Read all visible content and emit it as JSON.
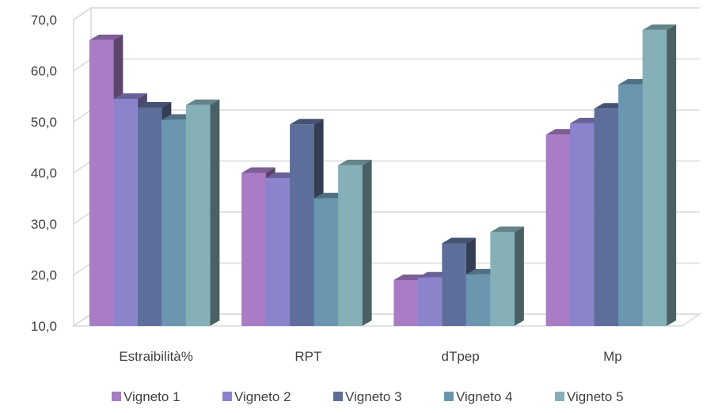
{
  "chart_data": {
    "type": "bar",
    "three_d": true,
    "categories": [
      "Estraibilità%",
      "RPT",
      "dTpep",
      "Mp"
    ],
    "series": [
      {
        "name": "Vigneto 1",
        "color": "#a97cc6",
        "values": [
          66.0,
          40.0,
          19.0,
          47.5
        ]
      },
      {
        "name": "Vigneto 2",
        "color": "#8b83cc",
        "values": [
          54.5,
          39.0,
          19.5,
          49.7
        ]
      },
      {
        "name": "Vigneto 3",
        "color": "#5c6e99",
        "values": [
          52.8,
          49.5,
          26.2,
          52.6
        ]
      },
      {
        "name": "Vigneto 4",
        "color": "#6a96b0",
        "values": [
          50.4,
          35.0,
          20.1,
          57.3
        ]
      },
      {
        "name": "Vigneto 5",
        "color": "#85b0b8",
        "values": [
          53.3,
          41.5,
          28.4,
          68.0
        ]
      }
    ],
    "yticks": [
      "10,0",
      "20,0",
      "30,0",
      "40,0",
      "50,0",
      "60,0",
      "70,0"
    ],
    "ylim": [
      10,
      70
    ],
    "grid": true,
    "legend_position": "bottom"
  }
}
